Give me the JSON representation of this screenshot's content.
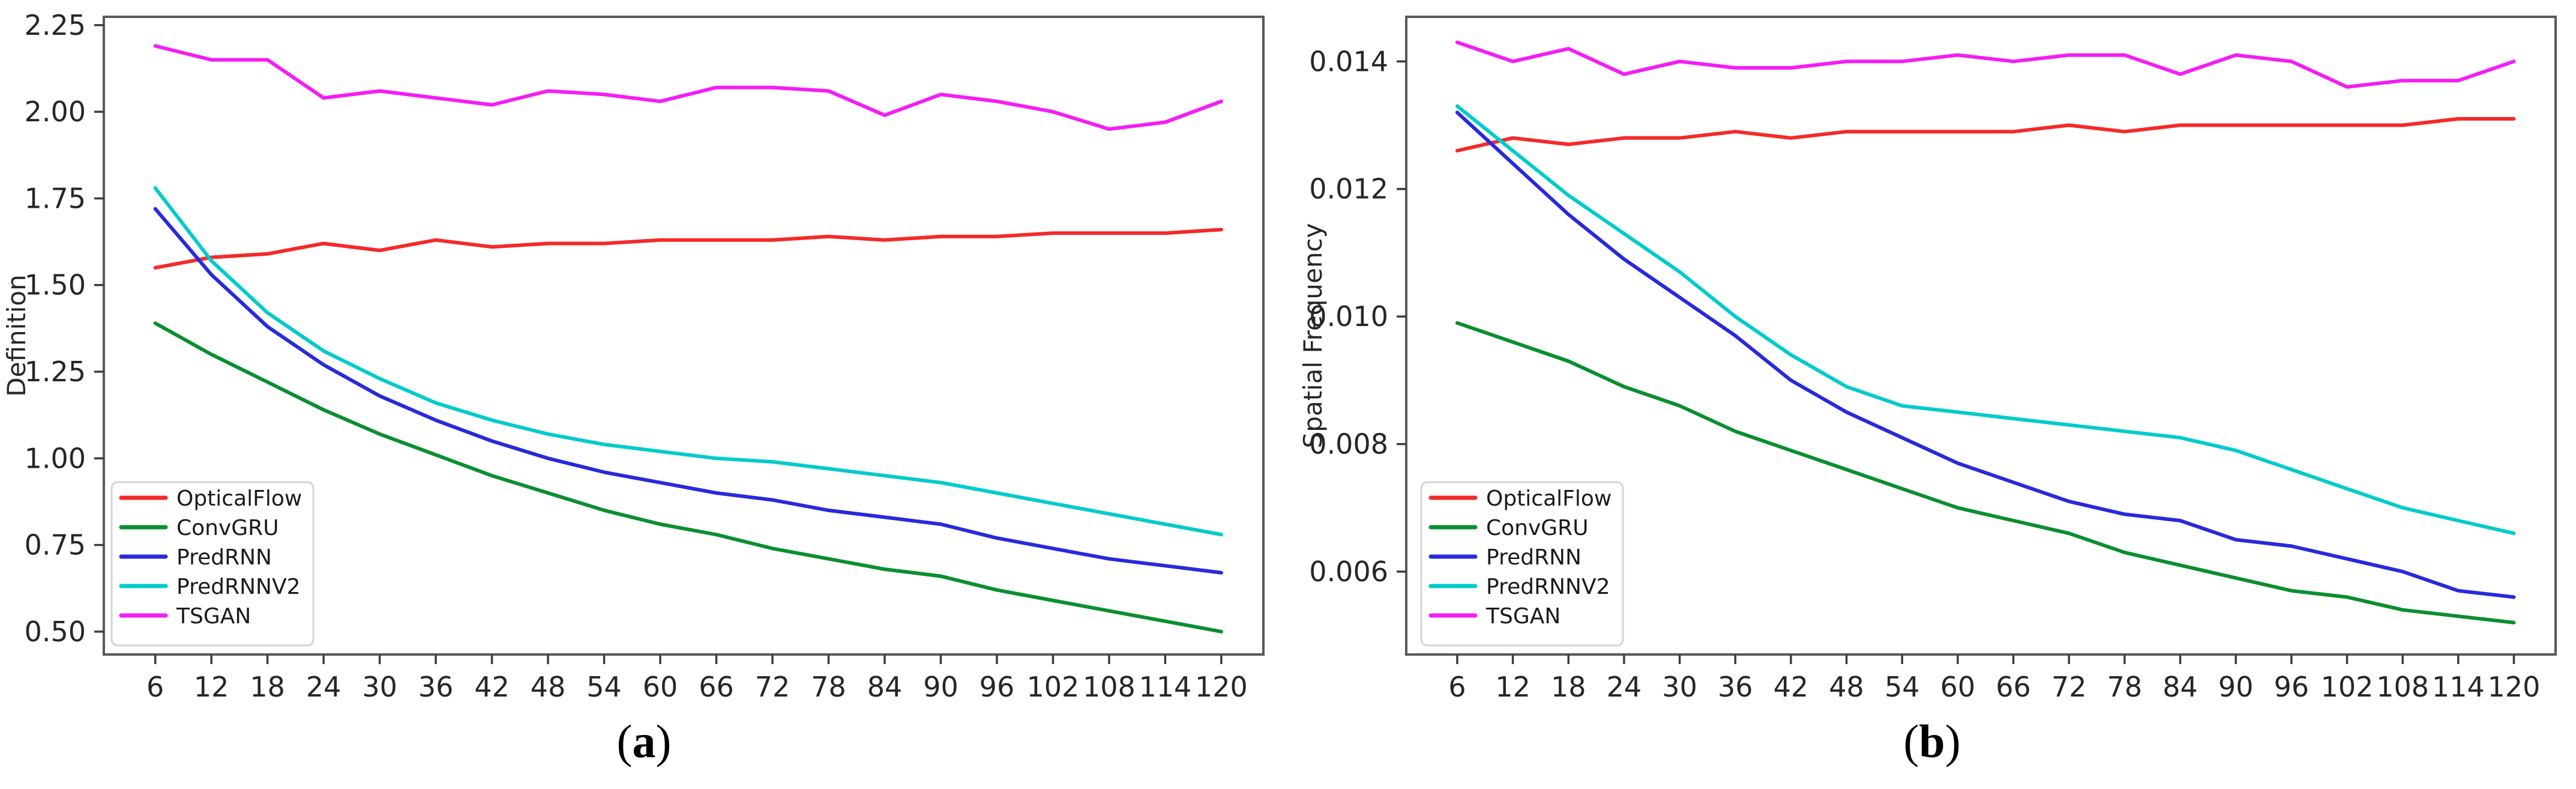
{
  "figure": {
    "background": "#ffffff",
    "captions": [
      {
        "open": "(",
        "letter": "a",
        "close": ")"
      },
      {
        "open": "(",
        "letter": "b",
        "close": ")"
      }
    ]
  },
  "palette": {
    "opticalflow": "#f42a2a",
    "convgru": "#0a8f2f",
    "predrnn": "#2929dc",
    "predrnnv2": "#00cbcb",
    "tsgan": "#f41df4",
    "spine": "#595959",
    "tick": "#3c3c3c",
    "tick_label": "#262626",
    "legend_border": "#d4d4d4",
    "legend_bg": "#ffffff"
  },
  "chart_data": [
    {
      "type": "line",
      "title": "",
      "xlabel": "",
      "ylabel": "Definition",
      "grid": false,
      "legend_position": "lower left",
      "x": [
        6,
        12,
        18,
        24,
        30,
        36,
        42,
        48,
        54,
        60,
        66,
        72,
        78,
        84,
        90,
        96,
        102,
        108,
        114,
        120
      ],
      "x_tick_labels": [
        "6",
        "12",
        "18",
        "24",
        "30",
        "36",
        "42",
        "48",
        "54",
        "60",
        "66",
        "72",
        "78",
        "84",
        "90",
        "96",
        "102",
        "108",
        "114",
        "120"
      ],
      "y_ticks": [
        0.5,
        0.75,
        1.0,
        1.25,
        1.5,
        1.75,
        2.0,
        2.25
      ],
      "y_tick_labels": [
        "0.50",
        "0.75",
        "1.00",
        "1.25",
        "1.50",
        "1.75",
        "2.00",
        "2.25"
      ],
      "xlim": [
        0.5,
        124.5
      ],
      "ylim": [
        0.434,
        2.274
      ],
      "series": [
        {
          "name": "OpticalFlow",
          "color_key": "opticalflow",
          "values": [
            1.55,
            1.58,
            1.59,
            1.62,
            1.6,
            1.63,
            1.61,
            1.62,
            1.62,
            1.63,
            1.63,
            1.63,
            1.64,
            1.63,
            1.64,
            1.64,
            1.65,
            1.65,
            1.65,
            1.66
          ]
        },
        {
          "name": "ConvGRU",
          "color_key": "convgru",
          "values": [
            1.39,
            1.3,
            1.22,
            1.14,
            1.07,
            1.01,
            0.95,
            0.9,
            0.85,
            0.81,
            0.78,
            0.74,
            0.71,
            0.68,
            0.66,
            0.62,
            0.59,
            0.56,
            0.53,
            0.5
          ]
        },
        {
          "name": "PredRNN",
          "color_key": "predrnn",
          "values": [
            1.72,
            1.53,
            1.38,
            1.27,
            1.18,
            1.11,
            1.05,
            1.0,
            0.96,
            0.93,
            0.9,
            0.88,
            0.85,
            0.83,
            0.81,
            0.77,
            0.74,
            0.71,
            0.69,
            0.67
          ]
        },
        {
          "name": "PredRNNV2",
          "color_key": "predrnnv2",
          "values": [
            1.78,
            1.57,
            1.42,
            1.31,
            1.23,
            1.16,
            1.11,
            1.07,
            1.04,
            1.02,
            1.0,
            0.99,
            0.97,
            0.95,
            0.93,
            0.9,
            0.87,
            0.84,
            0.81,
            0.78
          ]
        },
        {
          "name": "TSGAN",
          "color_key": "tsgan",
          "values": [
            2.19,
            2.15,
            2.15,
            2.04,
            2.06,
            2.04,
            2.02,
            2.06,
            2.05,
            2.03,
            2.07,
            2.07,
            2.06,
            1.99,
            2.05,
            2.03,
            2.0,
            1.95,
            1.97,
            2.03
          ]
        }
      ]
    },
    {
      "type": "line",
      "title": "",
      "xlabel": "",
      "ylabel": "Spatial Frequency",
      "grid": false,
      "legend_position": "lower left",
      "x": [
        6,
        12,
        18,
        24,
        30,
        36,
        42,
        48,
        54,
        60,
        66,
        72,
        78,
        84,
        90,
        96,
        102,
        108,
        114,
        120
      ],
      "x_tick_labels": [
        "6",
        "12",
        "18",
        "24",
        "30",
        "36",
        "42",
        "48",
        "54",
        "60",
        "66",
        "72",
        "78",
        "84",
        "90",
        "96",
        "102",
        "108",
        "114",
        "120"
      ],
      "y_ticks": [
        0.006,
        0.008,
        0.01,
        0.012,
        0.014
      ],
      "y_tick_labels": [
        "0.006",
        "0.008",
        "0.010",
        "0.012",
        "0.014"
      ],
      "xlim": [
        0.5,
        124.5
      ],
      "ylim": [
        0.0047,
        0.0147
      ],
      "series": [
        {
          "name": "OpticalFlow",
          "color_key": "opticalflow",
          "values": [
            0.0126,
            0.0128,
            0.0127,
            0.0128,
            0.0128,
            0.0129,
            0.0128,
            0.0129,
            0.0129,
            0.0129,
            0.0129,
            0.013,
            0.0129,
            0.013,
            0.013,
            0.013,
            0.013,
            0.013,
            0.0131,
            0.0131
          ]
        },
        {
          "name": "ConvGRU",
          "color_key": "convgru",
          "values": [
            0.0099,
            0.0096,
            0.0093,
            0.0089,
            0.0086,
            0.0082,
            0.0079,
            0.0076,
            0.0073,
            0.007,
            0.0068,
            0.0066,
            0.0063,
            0.0061,
            0.0059,
            0.0057,
            0.0056,
            0.0054,
            0.0053,
            0.0052
          ]
        },
        {
          "name": "PredRNN",
          "color_key": "predrnn",
          "values": [
            0.0132,
            0.0124,
            0.0116,
            0.0109,
            0.0103,
            0.0097,
            0.009,
            0.0085,
            0.0081,
            0.0077,
            0.0074,
            0.0071,
            0.0069,
            0.0068,
            0.0065,
            0.0064,
            0.0062,
            0.006,
            0.0057,
            0.0056
          ]
        },
        {
          "name": "PredRNNV2",
          "color_key": "predrnnv2",
          "values": [
            0.0133,
            0.0126,
            0.0119,
            0.0113,
            0.0107,
            0.01,
            0.0094,
            0.0089,
            0.0086,
            0.0085,
            0.0084,
            0.0083,
            0.0082,
            0.0081,
            0.0079,
            0.0076,
            0.0073,
            0.007,
            0.0068,
            0.0066
          ]
        },
        {
          "name": "TSGAN",
          "color_key": "tsgan",
          "values": [
            0.0143,
            0.014,
            0.0142,
            0.0138,
            0.014,
            0.0139,
            0.0139,
            0.014,
            0.014,
            0.0141,
            0.014,
            0.0141,
            0.0141,
            0.0138,
            0.0141,
            0.014,
            0.0136,
            0.0137,
            0.0137,
            0.014
          ]
        }
      ]
    }
  ]
}
